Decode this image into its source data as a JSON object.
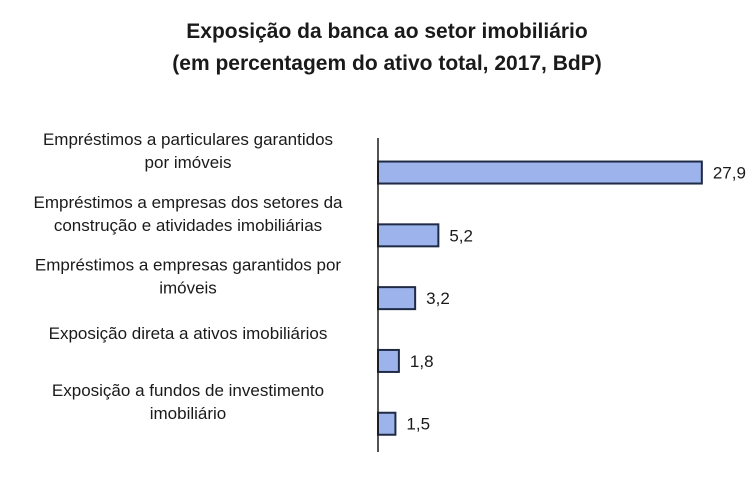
{
  "chart_data": {
    "type": "bar",
    "orientation": "horizontal",
    "title": [
      "Exposição da banca ao setor imobiliário",
      "(em percentagem do ativo total, 2017, BdP)"
    ],
    "categories": [
      [
        "Empréstimos a particulares garantidos",
        "por imóveis"
      ],
      [
        "Empréstimos a empresas dos setores da",
        "construção e atividades imobiliárias"
      ],
      [
        "Empréstimos a empresas garantidos por",
        "imóveis"
      ],
      [
        "Exposição direta a ativos imobiliários"
      ],
      [
        "Exposição a fundos de investimento",
        "imobiliário"
      ]
    ],
    "values": [
      27.9,
      5.2,
      3.2,
      1.8,
      1.5
    ],
    "value_labels": [
      "27,9",
      "5,2",
      "3,2",
      "1,8",
      "1,5"
    ],
    "xlim": [
      0,
      28
    ],
    "bar_color": "#9db3ec",
    "bar_edge_color": "#1f2a44",
    "grid": false,
    "legend": "none"
  }
}
